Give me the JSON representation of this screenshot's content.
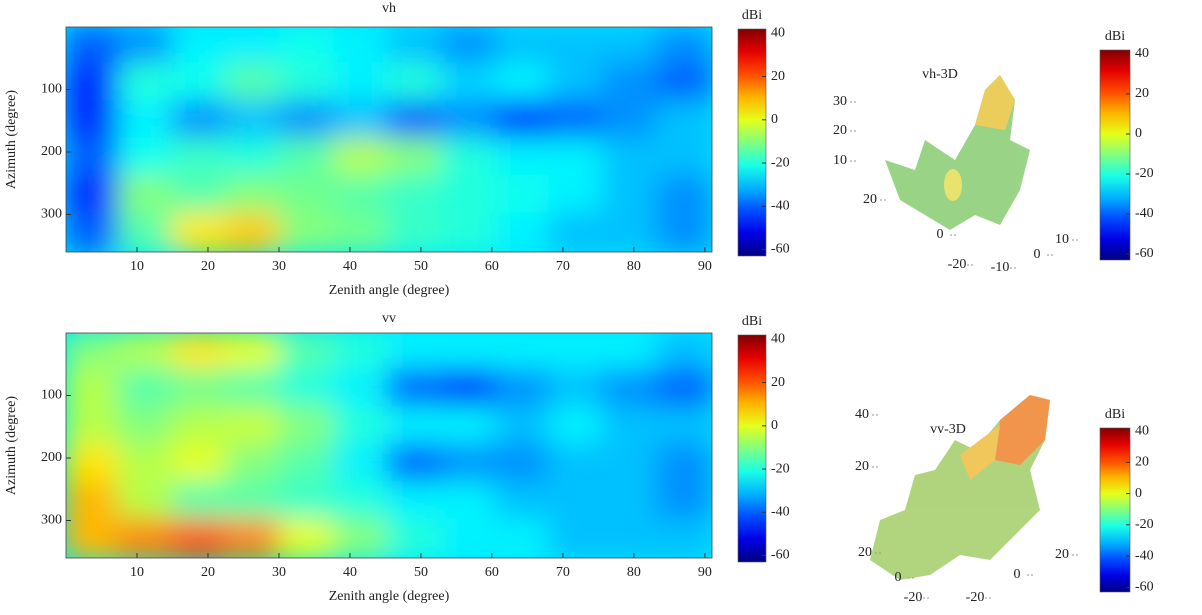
{
  "chart_data": [
    {
      "type": "heatmap",
      "title": "vh",
      "xlabel": "Zenith angle (degree)",
      "ylabel": "Azimuth (degree)",
      "xlim": [
        0,
        91
      ],
      "xticks": [
        10,
        20,
        30,
        40,
        50,
        60,
        70,
        80,
        90
      ],
      "ylim": [
        0,
        360
      ],
      "yticks": [
        100,
        200,
        300
      ],
      "values": [
        [
          -40,
          -35,
          -25,
          -25,
          -22,
          -25,
          -30,
          -35,
          -30,
          -30,
          -30,
          -35
        ],
        [
          -45,
          -20,
          -22,
          -15,
          -20,
          -25,
          -20,
          -28,
          -25,
          -30,
          -35,
          -40
        ],
        [
          -45,
          -25,
          -35,
          -30,
          -35,
          -30,
          -40,
          -35,
          -45,
          -40,
          -35,
          -30
        ],
        [
          -40,
          -22,
          -18,
          -20,
          -15,
          -5,
          -10,
          -20,
          -25,
          -25,
          -30,
          -30
        ],
        [
          -45,
          -10,
          -15,
          -10,
          -12,
          -15,
          -18,
          -20,
          -22,
          -25,
          -30,
          -35
        ],
        [
          -40,
          -15,
          5,
          8,
          -10,
          -12,
          -18,
          -20,
          -25,
          -30,
          -30,
          -35
        ]
      ],
      "colorbar_label": "dBi",
      "clim": [
        -63,
        42
      ],
      "cticks": [
        40,
        20,
        0,
        -20,
        -40,
        -60
      ]
    },
    {
      "type": "surface3d",
      "title": "vh-3D",
      "colorbar_label": "dBi",
      "clim": [
        -63,
        42
      ],
      "cticks": [
        40,
        20,
        0,
        -20,
        -40,
        -60
      ],
      "zticks": [
        30,
        20,
        10
      ],
      "xticks": [
        20,
        0,
        -20
      ],
      "yticks": [
        -10,
        0,
        10
      ]
    },
    {
      "type": "heatmap",
      "title": "vv",
      "xlabel": "Zenith angle (degree)",
      "ylabel": "Azimuth (degree)",
      "xlim": [
        0,
        91
      ],
      "xticks": [
        10,
        20,
        30,
        40,
        50,
        60,
        70,
        80,
        90
      ],
      "ylim": [
        0,
        360
      ],
      "yticks": [
        100,
        200,
        300
      ],
      "values": [
        [
          -10,
          -5,
          5,
          0,
          -15,
          -20,
          -25,
          -25,
          -25,
          -25,
          -25,
          -30
        ],
        [
          -5,
          -15,
          -12,
          -15,
          -20,
          -25,
          -40,
          -45,
          -35,
          -30,
          -35,
          -40
        ],
        [
          -5,
          -10,
          -5,
          -3,
          -10,
          -20,
          -25,
          -25,
          -30,
          -25,
          -30,
          -30
        ],
        [
          5,
          -5,
          0,
          -10,
          -15,
          -25,
          -40,
          -35,
          -35,
          -30,
          -30,
          -35
        ],
        [
          10,
          -5,
          -15,
          -15,
          -18,
          -20,
          -25,
          -25,
          -30,
          -30,
          -30,
          -35
        ],
        [
          10,
          15,
          20,
          15,
          0,
          -10,
          -20,
          -25,
          -25,
          -30,
          -30,
          -30
        ]
      ],
      "colorbar_label": "dBi",
      "clim": [
        -63,
        42
      ],
      "cticks": [
        40,
        20,
        0,
        -20,
        -40,
        -60
      ]
    },
    {
      "type": "surface3d",
      "title": "vv-3D",
      "colorbar_label": "dBi",
      "clim": [
        -63,
        42
      ],
      "cticks": [
        40,
        20,
        0,
        -20,
        -40,
        -60
      ],
      "zticks": [
        40,
        20
      ],
      "xticks": [
        20,
        0,
        -20
      ],
      "yticks": [
        -20,
        0,
        20
      ]
    }
  ]
}
